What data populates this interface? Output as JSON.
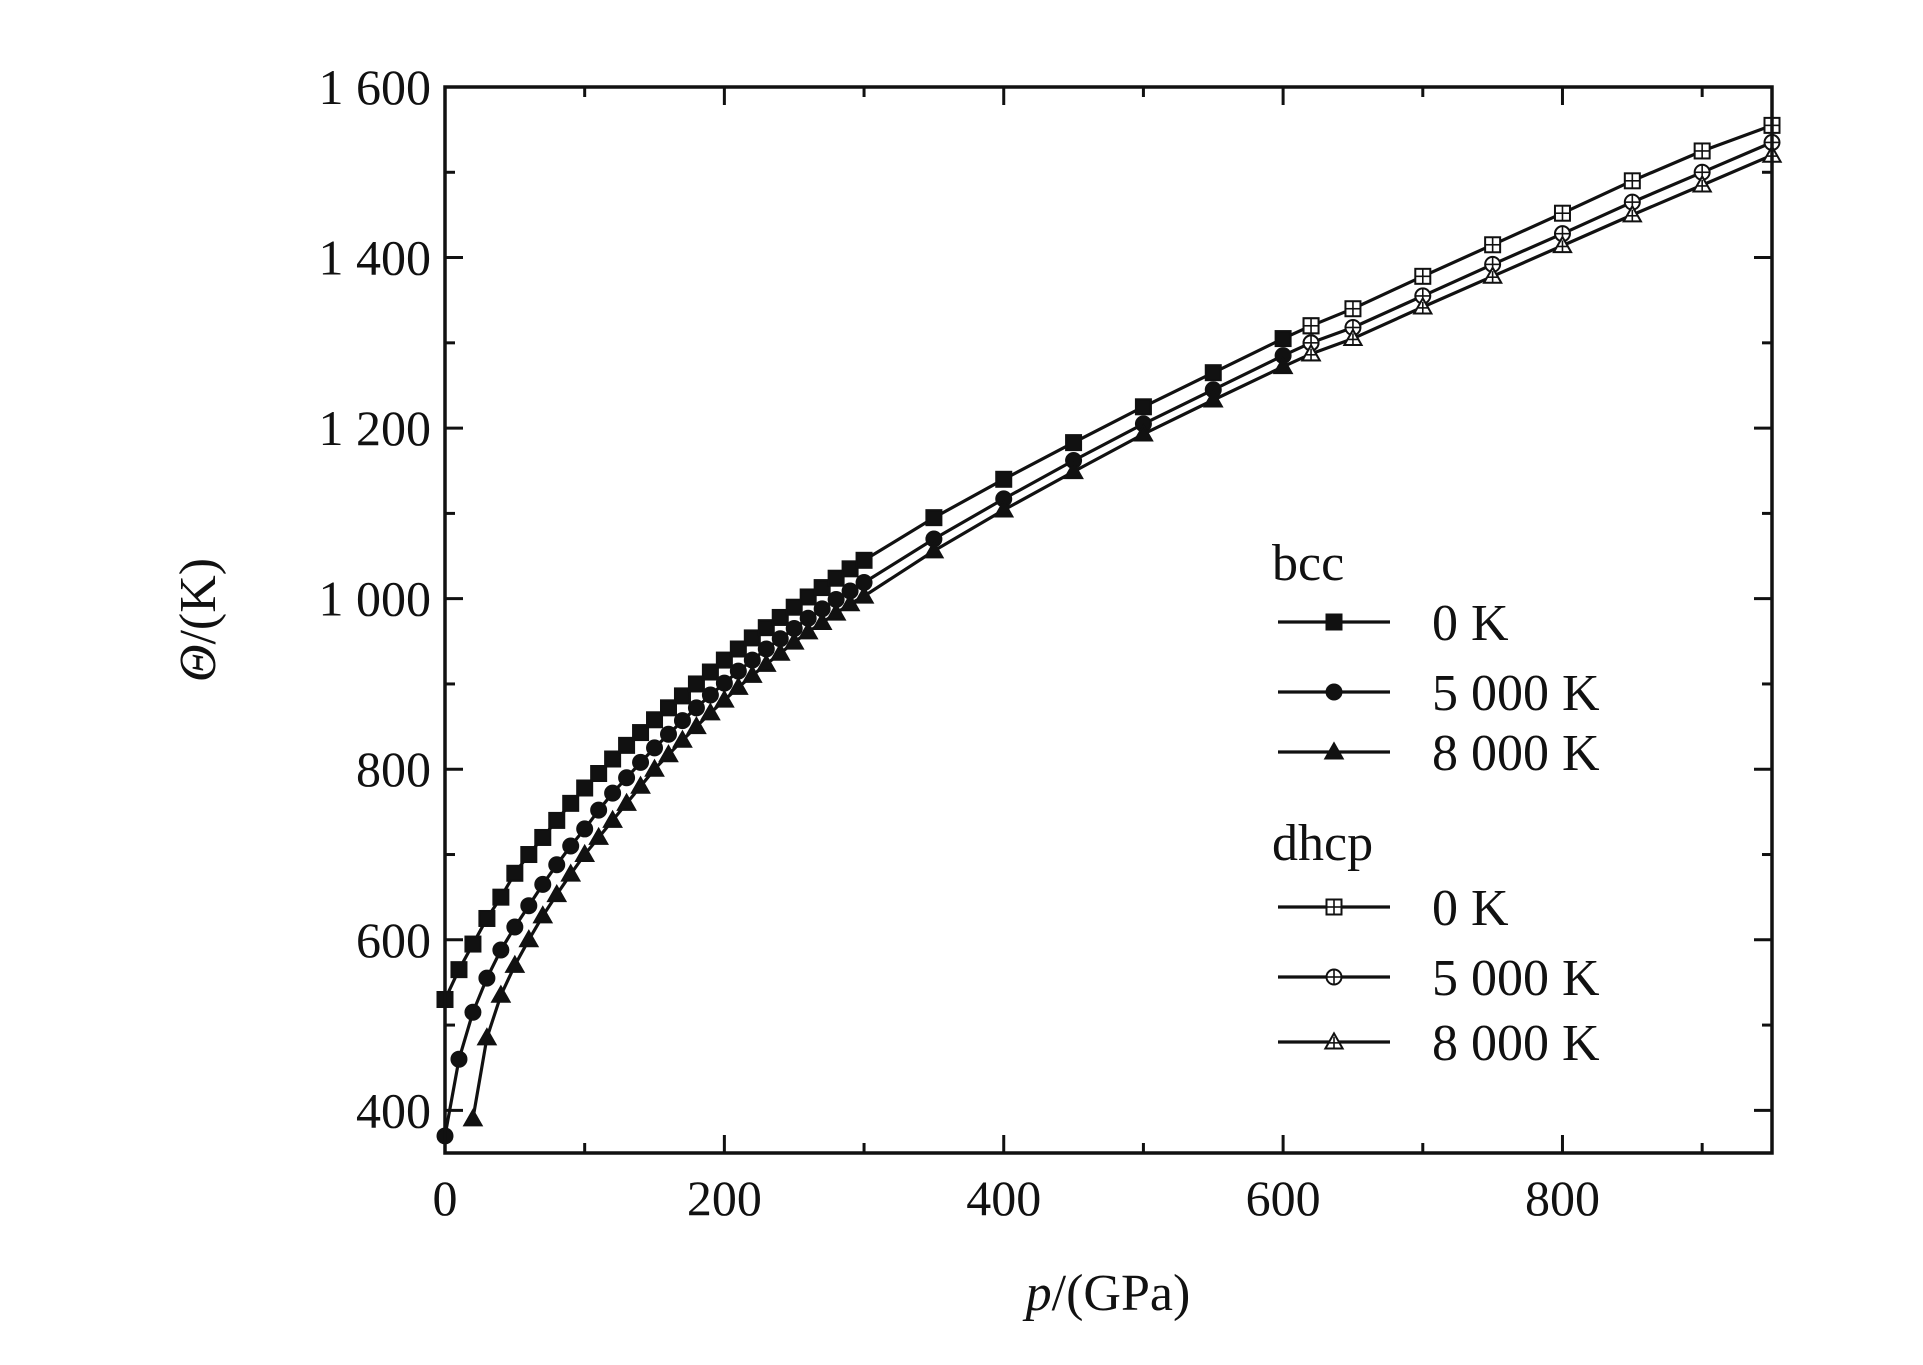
{
  "chart_data": {
    "type": "line",
    "xlabel_italic": "p",
    "xlabel_rest": "/(GPa)",
    "ylabel_italic": "Θ",
    "ylabel_rest": "/(K)",
    "xlim": [
      0,
      950
    ],
    "ylim": [
      350,
      1600
    ],
    "x_ticks": [
      0,
      200,
      400,
      600,
      800
    ],
    "x_tick_labels": [
      "0",
      "200",
      "400",
      "600",
      "800"
    ],
    "y_ticks": [
      400,
      600,
      800,
      1000,
      1200,
      1400,
      1600
    ],
    "y_tick_labels": [
      "400",
      "600",
      "800",
      "1 000",
      "1 200",
      "1 400",
      "1 600"
    ],
    "legend": {
      "groups": [
        {
          "label": "bcc",
          "entries": [
            {
              "label": "0 K",
              "marker": "square-filled"
            },
            {
              "label": "5 000 K",
              "marker": "circle-filled"
            },
            {
              "label": "8 000 K",
              "marker": "triangle-filled"
            }
          ]
        },
        {
          "label": "dhcp",
          "entries": [
            {
              "label": "0 K",
              "marker": "square-open"
            },
            {
              "label": "5 000 K",
              "marker": "circle-open"
            },
            {
              "label": "8 000 K",
              "marker": "triangle-open"
            }
          ]
        }
      ]
    },
    "series": [
      {
        "name": "bcc 0 K",
        "marker": "square-filled",
        "x": [
          0,
          10,
          20,
          30,
          40,
          50,
          60,
          70,
          80,
          90,
          100,
          110,
          120,
          130,
          140,
          150,
          160,
          170,
          180,
          190,
          200,
          210,
          220,
          230,
          240,
          250,
          260,
          270,
          280,
          290,
          300,
          350,
          400,
          450,
          500,
          550,
          600,
          620
        ],
        "y": [
          530,
          565,
          595,
          625,
          650,
          678,
          700,
          720,
          740,
          760,
          778,
          795,
          812,
          828,
          843,
          858,
          872,
          886,
          900,
          914,
          928,
          941,
          954,
          966,
          978,
          990,
          1002,
          1013,
          1024,
          1035,
          1045,
          1095,
          1140,
          1183,
          1225,
          1265,
          1305,
          1320
        ]
      },
      {
        "name": "bcc 5 000 K",
        "marker": "circle-filled",
        "x": [
          0,
          10,
          20,
          30,
          40,
          50,
          60,
          70,
          80,
          90,
          100,
          110,
          120,
          130,
          140,
          150,
          160,
          170,
          180,
          190,
          200,
          210,
          220,
          230,
          240,
          250,
          260,
          270,
          280,
          290,
          300,
          350,
          400,
          450,
          500,
          550,
          600,
          620
        ],
        "y": [
          370,
          460,
          515,
          555,
          588,
          615,
          640,
          665,
          688,
          710,
          730,
          752,
          772,
          790,
          808,
          825,
          841,
          857,
          872,
          887,
          901,
          915,
          928,
          941,
          953,
          965,
          977,
          988,
          999,
          1009,
          1019,
          1070,
          1117,
          1162,
          1205,
          1245,
          1285,
          1300
        ]
      },
      {
        "name": "bcc 8 000 K",
        "marker": "triangle-filled",
        "x": [
          20,
          30,
          40,
          50,
          60,
          70,
          80,
          90,
          100,
          110,
          120,
          130,
          140,
          150,
          160,
          170,
          180,
          190,
          200,
          210,
          220,
          230,
          240,
          250,
          260,
          270,
          280,
          290,
          300,
          350,
          400,
          450,
          500,
          550,
          600,
          620
        ],
        "y": [
          390,
          485,
          535,
          570,
          600,
          628,
          653,
          677,
          700,
          720,
          740,
          760,
          780,
          800,
          817,
          834,
          850,
          866,
          881,
          896,
          910,
          923,
          936,
          949,
          961,
          972,
          983,
          994,
          1003,
          1056,
          1104,
          1149,
          1193,
          1233,
          1272,
          1287
        ]
      },
      {
        "name": "dhcp 0 K",
        "marker": "square-open",
        "x": [
          620,
          650,
          700,
          750,
          800,
          850,
          900,
          950
        ],
        "y": [
          1320,
          1340,
          1378,
          1415,
          1452,
          1490,
          1525,
          1555
        ]
      },
      {
        "name": "dhcp 5 000 K",
        "marker": "circle-open",
        "x": [
          620,
          650,
          700,
          750,
          800,
          850,
          900,
          950
        ],
        "y": [
          1300,
          1318,
          1355,
          1392,
          1428,
          1465,
          1500,
          1535
        ]
      },
      {
        "name": "dhcp 8 000 K",
        "marker": "triangle-open",
        "x": [
          620,
          650,
          700,
          750,
          800,
          850,
          900,
          950
        ],
        "y": [
          1287,
          1305,
          1342,
          1378,
          1414,
          1450,
          1485,
          1520
        ]
      }
    ]
  }
}
